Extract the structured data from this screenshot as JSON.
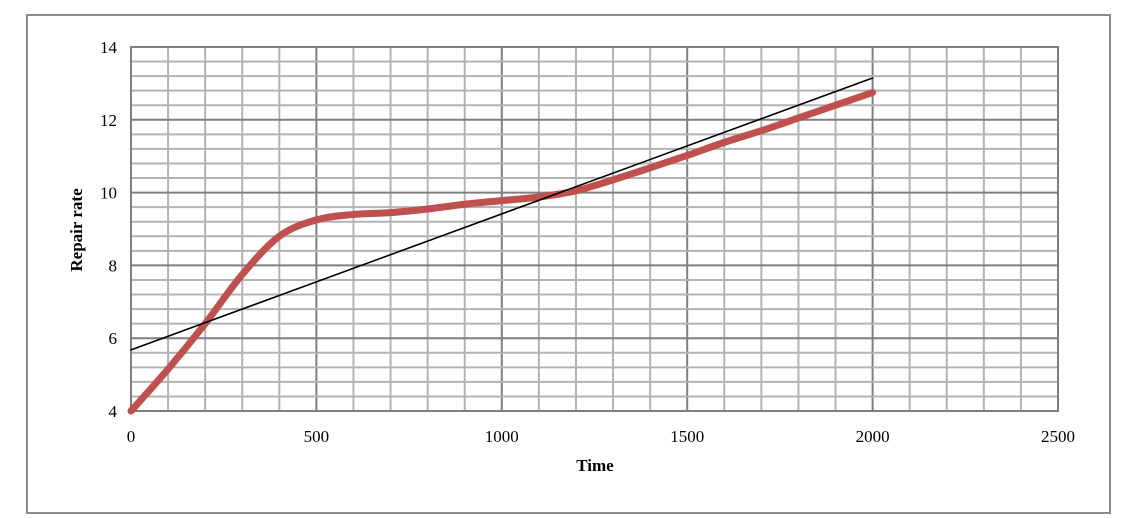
{
  "chart_data": {
    "type": "line",
    "title": "",
    "xlabel": "Time",
    "ylabel": "Repair rate",
    "xlim": [
      0,
      2500
    ],
    "ylim": [
      4,
      14
    ],
    "x_ticks": [
      "0",
      "500",
      "1000",
      "1500",
      "2000",
      "2500"
    ],
    "y_ticks": [
      "4",
      "6",
      "8",
      "10",
      "12",
      "14"
    ],
    "grid": true,
    "legend": "none",
    "series": [
      {
        "color": "#c0504d",
        "style": "thick",
        "x": [
          0,
          100,
          200,
          300,
          400,
          500,
          600,
          700,
          800,
          900,
          1000,
          1100,
          1200,
          1300,
          1400,
          1500,
          1600,
          1700,
          1800,
          1900,
          2000
        ],
        "y": [
          4.0,
          5.15,
          6.4,
          7.75,
          8.8,
          9.25,
          9.4,
          9.45,
          9.55,
          9.68,
          9.78,
          9.88,
          10.05,
          10.35,
          10.68,
          11.02,
          11.38,
          11.7,
          12.05,
          12.4,
          12.75
        ]
      },
      {
        "color": "#000000",
        "style": "thin",
        "x": [
          0,
          2000
        ],
        "y": [
          5.68,
          13.15
        ]
      }
    ]
  }
}
